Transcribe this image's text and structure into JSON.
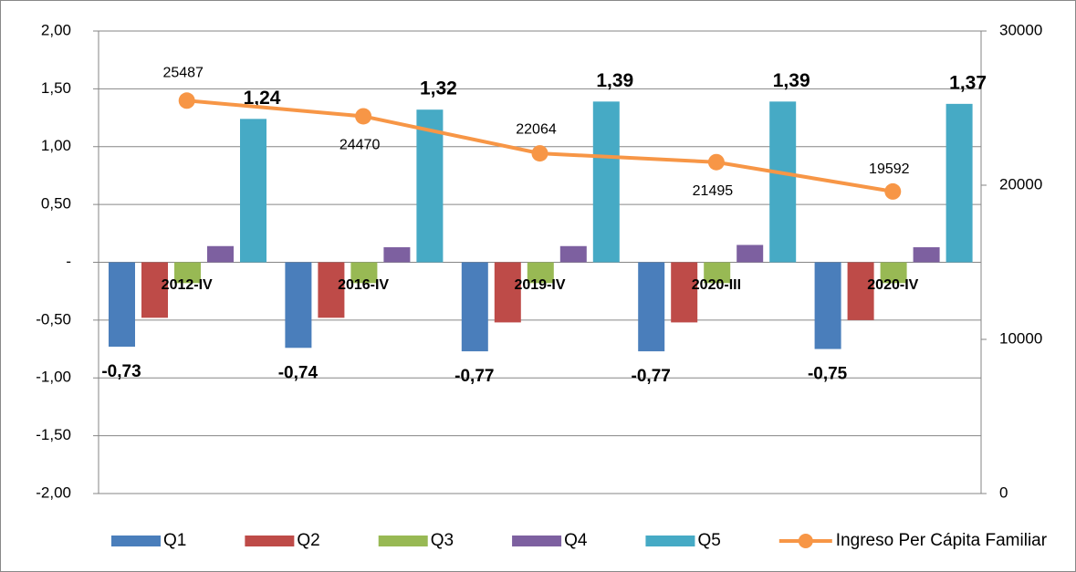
{
  "chart_data": {
    "type": "bar",
    "categories": [
      "2012-IV",
      "2016-IV",
      "2019-IV",
      "2020-III",
      "2020-IV"
    ],
    "series": [
      {
        "name": "Q1",
        "color": "#4a7ebb",
        "values": [
          -0.73,
          -0.74,
          -0.77,
          -0.77,
          -0.75
        ],
        "value_labels": [
          "-0,73",
          "-0,74",
          "-0,77",
          "-0,77",
          "-0,75"
        ]
      },
      {
        "name": "Q2",
        "color": "#be4b48",
        "values": [
          -0.48,
          -0.48,
          -0.52,
          -0.52,
          -0.5
        ]
      },
      {
        "name": "Q3",
        "color": "#98b954",
        "values": [
          -0.18,
          -0.18,
          -0.18,
          -0.18,
          -0.18
        ]
      },
      {
        "name": "Q4",
        "color": "#7d60a0",
        "values": [
          0.14,
          0.13,
          0.14,
          0.15,
          0.13
        ]
      },
      {
        "name": "Q5",
        "color": "#46aac5",
        "values": [
          1.24,
          1.32,
          1.39,
          1.39,
          1.37
        ],
        "value_labels": [
          "1,24",
          "1,32",
          "1,39",
          "1,39",
          "1,37"
        ]
      },
      {
        "name": "Ingreso Per Cápita Familiar",
        "color": "#f79646",
        "type": "line",
        "axis": "y2",
        "values": [
          25487,
          24470,
          22064,
          21495,
          19592
        ]
      }
    ],
    "ylim": [
      -2,
      2
    ],
    "yticks": [
      {
        "value": -2,
        "label": "-2,00"
      },
      {
        "value": -1.5,
        "label": "-1,50"
      },
      {
        "value": -1,
        "label": "-1,00"
      },
      {
        "value": -0.5,
        "label": "-0,50"
      },
      {
        "value": 0,
        "label": "-"
      },
      {
        "value": 0.5,
        "label": "0,50"
      },
      {
        "value": 1,
        "label": "1,00"
      },
      {
        "value": 1.5,
        "label": "1,50"
      },
      {
        "value": 2,
        "label": "2,00"
      }
    ],
    "y2lim": [
      0,
      30000
    ],
    "y2ticks": [
      0,
      10000,
      20000,
      30000
    ],
    "grid": true,
    "legend": "bottom"
  }
}
